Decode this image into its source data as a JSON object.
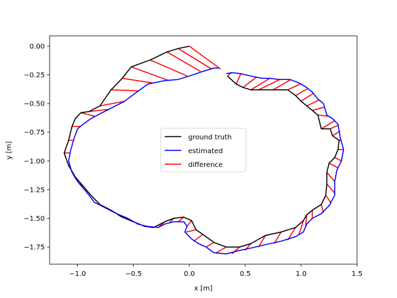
{
  "chart_data": {
    "type": "line",
    "title": "",
    "xlabel": "x [m]",
    "ylabel": "y [m]",
    "xlim": [
      -1.25,
      1.5
    ],
    "ylim": [
      -1.9,
      0.09
    ],
    "xticks": [
      -1.0,
      -0.5,
      0.0,
      0.5,
      1.0,
      1.5
    ],
    "xtick_labels": [
      "−1.0",
      "−0.5",
      "0.0",
      "0.5",
      "1.0",
      "1.5"
    ],
    "yticks": [
      0.0,
      -0.25,
      -0.5,
      -0.75,
      -1.0,
      -1.25,
      -1.5,
      -1.75
    ],
    "ytick_labels": [
      "0.00",
      "−0.25",
      "−0.50",
      "−0.75",
      "−1.00",
      "−1.25",
      "−1.50",
      "−1.75"
    ],
    "grid": false,
    "legend_position": "center",
    "legend": [
      {
        "label": "ground truth",
        "color": "#000000"
      },
      {
        "label": "estimated",
        "color": "#0000ff"
      },
      {
        "label": "difference",
        "color": "#ff0000"
      }
    ],
    "series": [
      {
        "name": "ground truth",
        "color": "#000000",
        "points": [
          [
            0.0,
            0.0
          ],
          [
            -0.1,
            -0.02
          ],
          [
            -0.2,
            -0.05
          ],
          [
            -0.35,
            -0.12
          ],
          [
            -0.52,
            -0.18
          ],
          [
            -0.6,
            -0.28
          ],
          [
            -0.7,
            -0.38
          ],
          [
            -0.8,
            -0.52
          ],
          [
            -0.9,
            -0.57
          ],
          [
            -0.97,
            -0.58
          ],
          [
            -1.02,
            -0.63
          ],
          [
            -1.05,
            -0.7
          ],
          [
            -1.08,
            -0.82
          ],
          [
            -1.12,
            -0.93
          ],
          [
            -1.08,
            -1.04
          ],
          [
            -1.02,
            -1.14
          ],
          [
            -0.95,
            -1.22
          ],
          [
            -0.88,
            -1.3
          ],
          [
            -0.8,
            -1.38
          ],
          [
            -0.7,
            -1.43
          ],
          [
            -0.6,
            -1.49
          ],
          [
            -0.5,
            -1.53
          ],
          [
            -0.4,
            -1.57
          ],
          [
            -0.32,
            -1.58
          ],
          [
            -0.22,
            -1.53
          ],
          [
            -0.14,
            -1.5
          ],
          [
            -0.05,
            -1.49
          ],
          [
            0.02,
            -1.52
          ],
          [
            0.06,
            -1.6
          ],
          [
            0.12,
            -1.64
          ],
          [
            0.22,
            -1.71
          ],
          [
            0.33,
            -1.75
          ],
          [
            0.45,
            -1.75
          ],
          [
            0.55,
            -1.72
          ],
          [
            0.68,
            -1.65
          ],
          [
            0.82,
            -1.62
          ],
          [
            0.95,
            -1.58
          ],
          [
            1.02,
            -1.52
          ],
          [
            1.05,
            -1.47
          ],
          [
            1.1,
            -1.43
          ],
          [
            1.18,
            -1.38
          ],
          [
            1.22,
            -1.3
          ],
          [
            1.23,
            -1.2
          ],
          [
            1.23,
            -1.1
          ],
          [
            1.25,
            -1.02
          ],
          [
            1.3,
            -0.97
          ],
          [
            1.33,
            -0.9
          ],
          [
            1.34,
            -0.82
          ],
          [
            1.28,
            -0.78
          ],
          [
            1.26,
            -0.72
          ],
          [
            1.18,
            -0.72
          ],
          [
            1.15,
            -0.6
          ],
          [
            1.1,
            -0.56
          ],
          [
            1.05,
            -0.52
          ],
          [
            1.0,
            -0.48
          ],
          [
            0.95,
            -0.43
          ],
          [
            0.88,
            -0.38
          ],
          [
            0.75,
            -0.38
          ],
          [
            0.62,
            -0.38
          ],
          [
            0.55,
            -0.38
          ],
          [
            0.48,
            -0.36
          ],
          [
            0.42,
            -0.33
          ],
          [
            0.34,
            -0.26
          ]
        ]
      },
      {
        "name": "estimated",
        "color": "#0000ff",
        "points": [
          [
            0.27,
            -0.19
          ],
          [
            0.22,
            -0.19
          ],
          [
            0.12,
            -0.22
          ],
          [
            0.0,
            -0.26
          ],
          [
            -0.1,
            -0.29
          ],
          [
            -0.22,
            -0.3
          ],
          [
            -0.37,
            -0.33
          ],
          [
            -0.47,
            -0.4
          ],
          [
            -0.58,
            -0.48
          ],
          [
            -0.7,
            -0.54
          ],
          [
            -0.8,
            -0.59
          ],
          [
            -0.88,
            -0.63
          ],
          [
            -0.95,
            -0.68
          ],
          [
            -1.0,
            -0.72
          ],
          [
            -1.03,
            -0.8
          ],
          [
            -1.06,
            -0.9
          ],
          [
            -1.08,
            -1.0
          ],
          [
            -1.05,
            -1.1
          ],
          [
            -1.0,
            -1.18
          ],
          [
            -0.92,
            -1.27
          ],
          [
            -0.85,
            -1.36
          ],
          [
            -0.75,
            -1.41
          ],
          [
            -0.65,
            -1.46
          ],
          [
            -0.55,
            -1.5
          ],
          [
            -0.46,
            -1.55
          ],
          [
            -0.38,
            -1.57
          ],
          [
            -0.28,
            -1.58
          ],
          [
            -0.22,
            -1.55
          ],
          [
            -0.14,
            -1.53
          ],
          [
            -0.05,
            -1.53
          ],
          [
            -0.02,
            -1.57
          ],
          [
            -0.04,
            -1.62
          ],
          [
            0.02,
            -1.68
          ],
          [
            0.08,
            -1.72
          ],
          [
            0.15,
            -1.75
          ],
          [
            0.22,
            -1.8
          ],
          [
            0.33,
            -1.81
          ],
          [
            0.45,
            -1.78
          ],
          [
            0.55,
            -1.76
          ],
          [
            0.68,
            -1.73
          ],
          [
            0.82,
            -1.7
          ],
          [
            0.95,
            -1.66
          ],
          [
            1.02,
            -1.62
          ],
          [
            1.05,
            -1.55
          ],
          [
            1.1,
            -1.5
          ],
          [
            1.18,
            -1.46
          ],
          [
            1.25,
            -1.39
          ],
          [
            1.3,
            -1.3
          ],
          [
            1.3,
            -1.18
          ],
          [
            1.32,
            -1.08
          ],
          [
            1.36,
            -1.0
          ],
          [
            1.38,
            -0.9
          ],
          [
            1.35,
            -0.8
          ],
          [
            1.33,
            -0.68
          ],
          [
            1.28,
            -0.63
          ],
          [
            1.23,
            -0.6
          ],
          [
            1.2,
            -0.5
          ],
          [
            1.15,
            -0.46
          ],
          [
            1.1,
            -0.4
          ],
          [
            1.05,
            -0.36
          ],
          [
            0.98,
            -0.32
          ],
          [
            0.9,
            -0.29
          ],
          [
            0.8,
            -0.29
          ],
          [
            0.72,
            -0.28
          ],
          [
            0.65,
            -0.28
          ],
          [
            0.55,
            -0.26
          ],
          [
            0.46,
            -0.24
          ],
          [
            0.38,
            -0.23
          ],
          [
            0.33,
            -0.24
          ]
        ]
      }
    ],
    "difference_segments": [
      [
        [
          0.0,
          0.0
        ],
        [
          0.28,
          -0.2
        ]
      ],
      [
        [
          -0.1,
          -0.02
        ],
        [
          0.2,
          -0.2
        ]
      ],
      [
        [
          -0.2,
          -0.05
        ],
        [
          0.1,
          -0.22
        ]
      ],
      [
        [
          -0.35,
          -0.12
        ],
        [
          -0.02,
          -0.26
        ]
      ],
      [
        [
          -0.52,
          -0.18
        ],
        [
          -0.18,
          -0.3
        ]
      ],
      [
        [
          -0.6,
          -0.28
        ],
        [
          -0.33,
          -0.32
        ]
      ],
      [
        [
          -0.7,
          -0.38
        ],
        [
          -0.45,
          -0.39
        ]
      ],
      [
        [
          -0.8,
          -0.52
        ],
        [
          -0.58,
          -0.48
        ]
      ],
      [
        [
          -0.9,
          -0.57
        ],
        [
          -0.72,
          -0.55
        ]
      ],
      [
        [
          -0.97,
          -0.58
        ],
        [
          -0.85,
          -0.61
        ]
      ],
      [
        [
          -1.05,
          -0.7
        ],
        [
          -0.98,
          -0.7
        ]
      ],
      [
        [
          -1.08,
          -0.82
        ],
        [
          -1.04,
          -0.82
        ]
      ],
      [
        [
          -1.12,
          -0.93
        ],
        [
          -1.07,
          -0.93
        ]
      ],
      [
        [
          -1.08,
          -1.04
        ],
        [
          -1.07,
          -1.04
        ]
      ],
      [
        [
          -0.95,
          -1.22
        ],
        [
          -0.98,
          -1.2
        ]
      ],
      [
        [
          -0.8,
          -1.38
        ],
        [
          -0.82,
          -1.37
        ]
      ],
      [
        [
          -0.6,
          -1.49
        ],
        [
          -0.64,
          -1.47
        ]
      ],
      [
        [
          -0.45,
          -1.55
        ],
        [
          -0.47,
          -1.55
        ]
      ],
      [
        [
          -0.32,
          -1.58
        ],
        [
          -0.4,
          -1.57
        ]
      ],
      [
        [
          -0.22,
          -1.53
        ],
        [
          -0.28,
          -1.58
        ]
      ],
      [
        [
          -0.14,
          -1.5
        ],
        [
          -0.18,
          -1.54
        ]
      ],
      [
        [
          -0.05,
          -1.49
        ],
        [
          -0.1,
          -1.53
        ]
      ],
      [
        [
          0.02,
          -1.52
        ],
        [
          -0.02,
          -1.57
        ]
      ],
      [
        [
          0.06,
          -1.6
        ],
        [
          -0.03,
          -1.62
        ]
      ],
      [
        [
          0.12,
          -1.64
        ],
        [
          0.04,
          -1.7
        ]
      ],
      [
        [
          0.22,
          -1.71
        ],
        [
          0.15,
          -1.75
        ]
      ],
      [
        [
          0.33,
          -1.75
        ],
        [
          0.24,
          -1.8
        ]
      ],
      [
        [
          0.45,
          -1.75
        ],
        [
          0.38,
          -1.81
        ]
      ],
      [
        [
          0.55,
          -1.72
        ],
        [
          0.5,
          -1.78
        ]
      ],
      [
        [
          0.68,
          -1.65
        ],
        [
          0.62,
          -1.75
        ]
      ],
      [
        [
          0.82,
          -1.62
        ],
        [
          0.76,
          -1.72
        ]
      ],
      [
        [
          0.95,
          -1.58
        ],
        [
          0.88,
          -1.69
        ]
      ],
      [
        [
          1.02,
          -1.52
        ],
        [
          0.98,
          -1.64
        ]
      ],
      [
        [
          1.05,
          -1.47
        ],
        [
          1.04,
          -1.57
        ]
      ],
      [
        [
          1.1,
          -1.43
        ],
        [
          1.1,
          -1.5
        ]
      ],
      [
        [
          1.18,
          -1.38
        ],
        [
          1.2,
          -1.45
        ]
      ],
      [
        [
          1.22,
          -1.3
        ],
        [
          1.27,
          -1.37
        ]
      ],
      [
        [
          1.23,
          -1.2
        ],
        [
          1.3,
          -1.28
        ]
      ],
      [
        [
          1.23,
          -1.1
        ],
        [
          1.3,
          -1.18
        ]
      ],
      [
        [
          1.25,
          -1.02
        ],
        [
          1.33,
          -1.06
        ]
      ],
      [
        [
          1.3,
          -0.97
        ],
        [
          1.36,
          -1.0
        ]
      ],
      [
        [
          1.33,
          -0.9
        ],
        [
          1.38,
          -0.9
        ]
      ],
      [
        [
          1.34,
          -0.82
        ],
        [
          1.36,
          -0.82
        ]
      ],
      [
        [
          1.28,
          -0.78
        ],
        [
          1.35,
          -0.74
        ]
      ],
      [
        [
          1.26,
          -0.72
        ],
        [
          1.33,
          -0.69
        ]
      ],
      [
        [
          1.18,
          -0.72
        ],
        [
          1.3,
          -0.65
        ]
      ],
      [
        [
          1.15,
          -0.6
        ],
        [
          1.24,
          -0.61
        ]
      ],
      [
        [
          1.1,
          -0.56
        ],
        [
          1.21,
          -0.53
        ]
      ],
      [
        [
          1.05,
          -0.52
        ],
        [
          1.16,
          -0.47
        ]
      ],
      [
        [
          1.0,
          -0.48
        ],
        [
          1.11,
          -0.41
        ]
      ],
      [
        [
          0.95,
          -0.43
        ],
        [
          1.06,
          -0.37
        ]
      ],
      [
        [
          0.88,
          -0.38
        ],
        [
          0.99,
          -0.33
        ]
      ],
      [
        [
          0.75,
          -0.38
        ],
        [
          0.91,
          -0.29
        ]
      ],
      [
        [
          0.62,
          -0.38
        ],
        [
          0.81,
          -0.29
        ]
      ],
      [
        [
          0.55,
          -0.38
        ],
        [
          0.72,
          -0.28
        ]
      ],
      [
        [
          0.48,
          -0.36
        ],
        [
          0.6,
          -0.27
        ]
      ],
      [
        [
          0.42,
          -0.33
        ],
        [
          0.46,
          -0.24
        ]
      ],
      [
        [
          0.34,
          -0.26
        ],
        [
          0.38,
          -0.23
        ]
      ]
    ]
  }
}
